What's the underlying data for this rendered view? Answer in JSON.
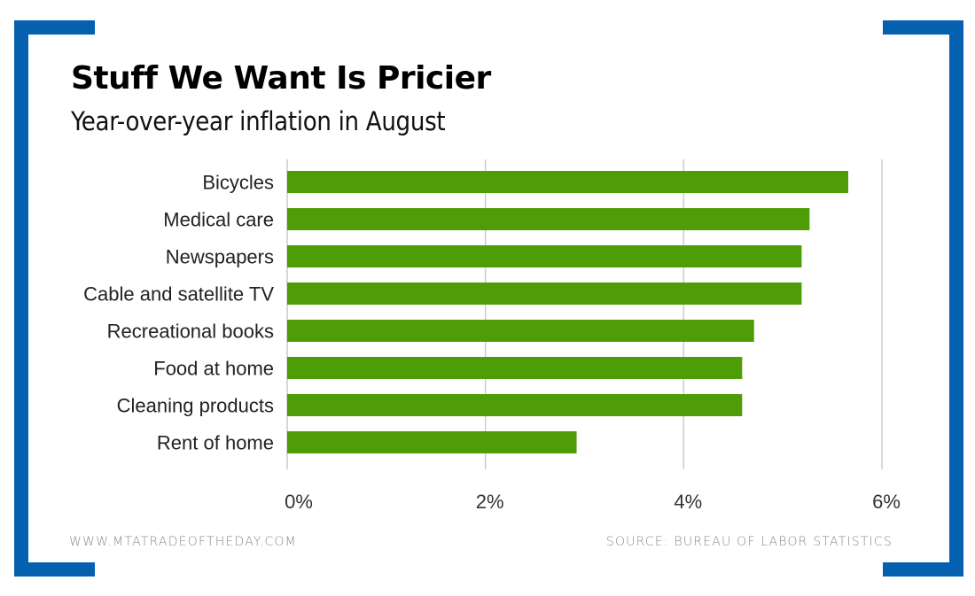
{
  "header": {
    "title": "Stuff We Want Is Pricier",
    "subtitle": "Year-over-year inflation in August"
  },
  "footer": {
    "website": "WWW.MTATRADEOFTHEDAY.COM",
    "source": "SOURCE: BUREAU OF LABOR STATISTICS"
  },
  "colors": {
    "bar": "#4e9c06",
    "bracket": "#0561b0",
    "grid": "#cccccc"
  },
  "chart_data": {
    "type": "bar",
    "orientation": "horizontal",
    "title": "Stuff We Want Is Pricier",
    "subtitle": "Year-over-year inflation in August",
    "xlabel": "",
    "ylabel": "",
    "categories": [
      "Bicycles",
      "Medical care",
      "Newspapers",
      "Cable and satellite TV",
      "Recreational books",
      "Food at home",
      "Cleaning products",
      "Rent of home"
    ],
    "values": [
      5.66,
      5.27,
      5.19,
      5.19,
      4.71,
      4.59,
      4.59,
      2.92
    ],
    "unit": "%",
    "xlim": [
      0,
      6
    ],
    "xticks": [
      0,
      2,
      4,
      6
    ],
    "xtick_labels": [
      "0%",
      "2%",
      "4%",
      "6%"
    ],
    "grid": true,
    "legend": "none"
  }
}
